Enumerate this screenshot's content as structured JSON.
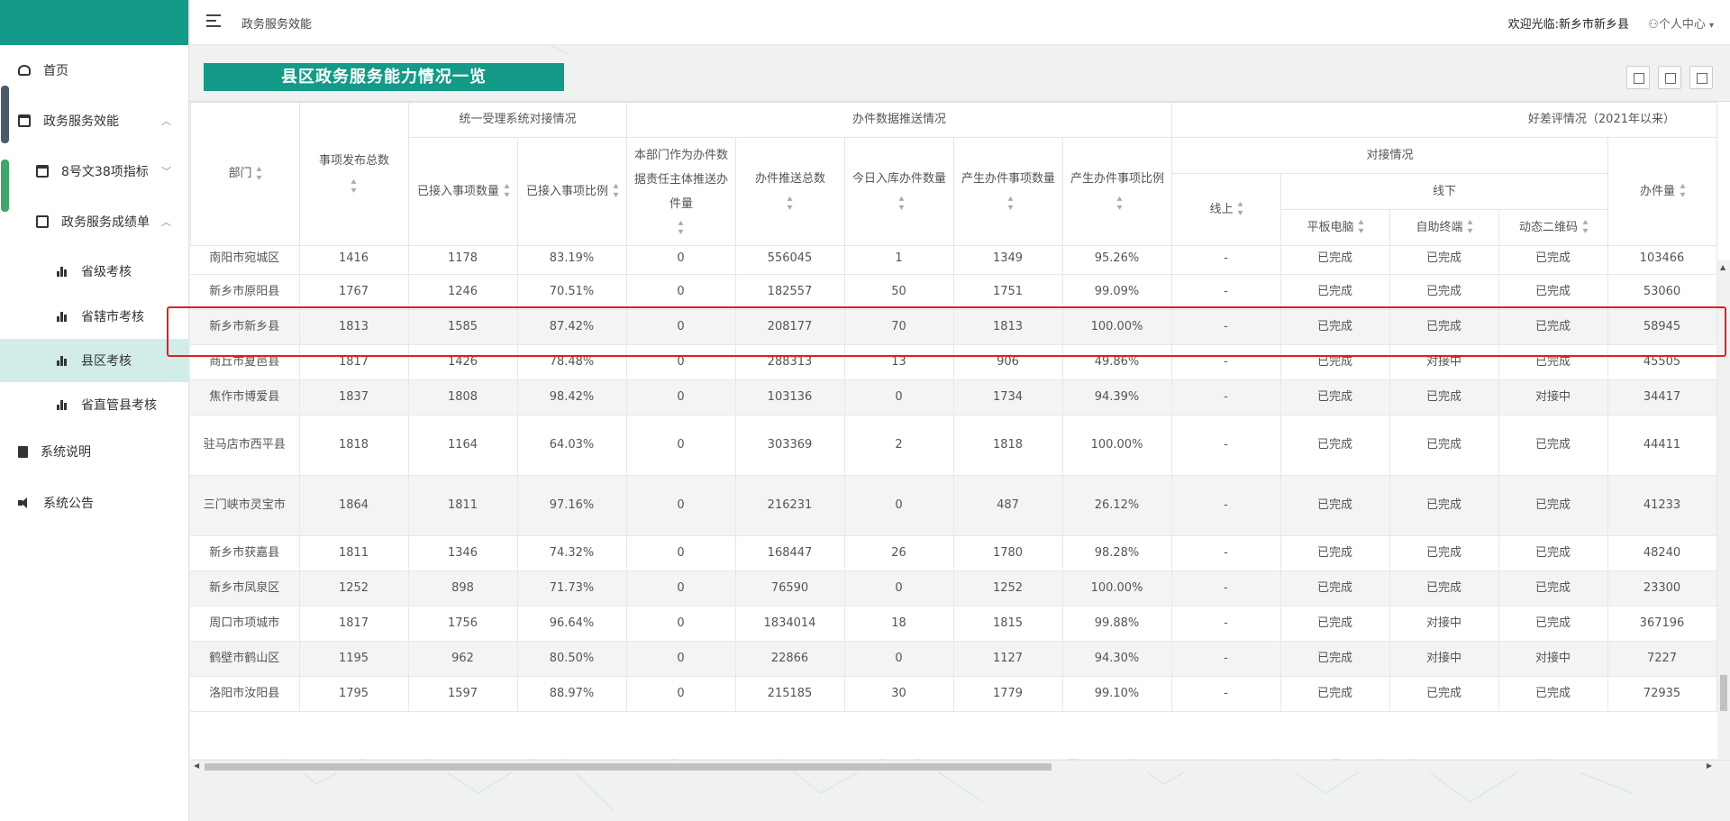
{
  "sidebar": {
    "items": [
      {
        "label": "首页",
        "icon": "dashboard-icon"
      },
      {
        "label": "政务服务效能",
        "icon": "calendar-icon",
        "caret": "︿"
      },
      {
        "label": "8号文38项指标",
        "icon": "calendar-icon",
        "caret": "﹀"
      },
      {
        "label": "政务服务成绩单",
        "icon": "chart-icon",
        "caret": "︿"
      },
      {
        "label": "省级考核",
        "icon": "bar-chart-icon"
      },
      {
        "label": "省辖市考核",
        "icon": "bar-chart-icon"
      },
      {
        "label": "县区考核",
        "icon": "bar-chart-icon",
        "active": true
      },
      {
        "label": "省直管县考核",
        "icon": "bar-chart-icon"
      },
      {
        "label": "系统说明",
        "icon": "document-icon"
      },
      {
        "label": "系统公告",
        "icon": "speaker-icon"
      }
    ]
  },
  "header": {
    "title": "政务服务效能",
    "welcome": "欢迎光临:新乡市新乡县",
    "user_center": "个人中心"
  },
  "panel": {
    "title": "县区政务服务能力情况一览",
    "tools": [
      "grid-view-icon",
      "export-icon",
      "print-icon"
    ]
  },
  "table": {
    "groups": {
      "unified": "统一受理系统对接情况",
      "push": "办件数据推送情况",
      "rating": "好差评情况（2021年以来）",
      "connect": "对接情况",
      "offline": "线下"
    },
    "headers": {
      "dept": "部门",
      "total": "事项发布总数",
      "connected_count": "已接入事项数量",
      "connected_ratio": "已接入事项比例",
      "dept_push": "本部门作为办件数据责任主体推送办件量",
      "push_total": "办件推送总数",
      "today": "今日入库办件数量",
      "produced_count": "产生办件事项数量",
      "produced_ratio": "产生办件事项比例",
      "online": "线上",
      "tablet": "平板电脑",
      "kiosk": "自助终端",
      "qrcode": "动态二维码",
      "volume": "办件量"
    },
    "rows": [
      [
        "南阳市宛城区",
        "1416",
        "1178",
        "83.19%",
        "0",
        "556045",
        "1",
        "1349",
        "95.26%",
        "-",
        "已完成",
        "已完成",
        "已完成",
        "103466"
      ],
      [
        "新乡市原阳县",
        "1767",
        "1246",
        "70.51%",
        "0",
        "182557",
        "50",
        "1751",
        "99.09%",
        "-",
        "已完成",
        "已完成",
        "已完成",
        "53060"
      ],
      [
        "新乡市新乡县",
        "1813",
        "1585",
        "87.42%",
        "0",
        "208177",
        "70",
        "1813",
        "100.00%",
        "-",
        "已完成",
        "已完成",
        "已完成",
        "58945"
      ],
      [
        "商丘市夏邑县",
        "1817",
        "1426",
        "78.48%",
        "0",
        "288313",
        "13",
        "906",
        "49.86%",
        "-",
        "已完成",
        "对接中",
        "已完成",
        "45505"
      ],
      [
        "焦作市博爱县",
        "1837",
        "1808",
        "98.42%",
        "0",
        "103136",
        "0",
        "1734",
        "94.39%",
        "-",
        "已完成",
        "已完成",
        "对接中",
        "34417"
      ],
      [
        "驻马店市西平县",
        "1818",
        "1164",
        "64.03%",
        "0",
        "303369",
        "2",
        "1818",
        "100.00%",
        "-",
        "已完成",
        "已完成",
        "已完成",
        "44411"
      ],
      [
        "三门峡市灵宝市",
        "1864",
        "1811",
        "97.16%",
        "0",
        "216231",
        "0",
        "487",
        "26.12%",
        "-",
        "已完成",
        "已完成",
        "已完成",
        "41233"
      ],
      [
        "新乡市获嘉县",
        "1811",
        "1346",
        "74.32%",
        "0",
        "168447",
        "26",
        "1780",
        "98.28%",
        "-",
        "已完成",
        "已完成",
        "已完成",
        "48240"
      ],
      [
        "新乡市凤泉区",
        "1252",
        "898",
        "71.73%",
        "0",
        "76590",
        "0",
        "1252",
        "100.00%",
        "-",
        "已完成",
        "已完成",
        "已完成",
        "23300"
      ],
      [
        "周口市项城市",
        "1817",
        "1756",
        "96.64%",
        "0",
        "1834014",
        "18",
        "1815",
        "99.88%",
        "-",
        "已完成",
        "对接中",
        "已完成",
        "367196"
      ],
      [
        "鹤壁市鹤山区",
        "1195",
        "962",
        "80.50%",
        "0",
        "22866",
        "0",
        "1127",
        "94.30%",
        "-",
        "已完成",
        "对接中",
        "对接中",
        "7227"
      ],
      [
        "洛阳市汝阳县",
        "1795",
        "1597",
        "88.97%",
        "0",
        "215185",
        "30",
        "1779",
        "99.10%",
        "-",
        "已完成",
        "已完成",
        "已完成",
        "72935"
      ]
    ],
    "highlighted_row": "新乡市新乡县"
  },
  "colors": {
    "brand": "#139a88",
    "active_bg": "#d2ede9",
    "highlight": "#e02020"
  }
}
